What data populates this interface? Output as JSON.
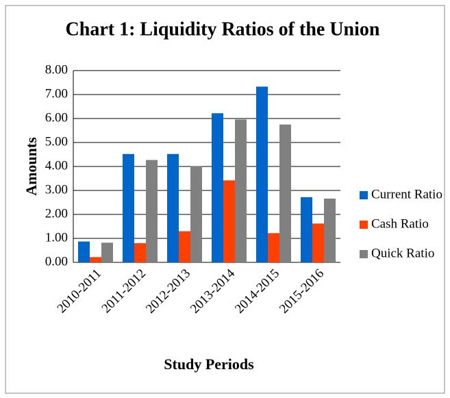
{
  "chart_data": {
    "type": "bar",
    "title": "Chart  1: Liquidity Ratios of the Union",
    "x_label": "Study Periods",
    "y_label": "Amounts",
    "categories": [
      "2010-2011",
      "2011-2012",
      "2012-2013",
      "2013-2014",
      "2014-2015",
      "2015-2016"
    ],
    "series": [
      {
        "name": "Current Ratio",
        "color": "#0066cc",
        "values": [
          0.87,
          4.52,
          4.52,
          6.22,
          7.33,
          2.72
        ]
      },
      {
        "name": "Cash Ratio",
        "color": "#ff4000",
        "values": [
          0.22,
          0.8,
          1.3,
          3.42,
          1.22,
          1.62
        ]
      },
      {
        "name": "Quick Ratio",
        "color": "#808080",
        "values": [
          0.82,
          4.27,
          4.02,
          5.96,
          5.75,
          2.66
        ]
      }
    ],
    "ylim": [
      0,
      8
    ],
    "yticks": [
      {
        "value": 0,
        "label": "0.00"
      },
      {
        "value": 1,
        "label": "1.00"
      },
      {
        "value": 2,
        "label": "2.00"
      },
      {
        "value": 3,
        "label": "3.00"
      },
      {
        "value": 4,
        "label": "4.00"
      },
      {
        "value": 5,
        "label": "5.00"
      },
      {
        "value": 6,
        "label": "6.00"
      },
      {
        "value": 7,
        "label": "7.00"
      },
      {
        "value": 8,
        "label": "8.00"
      }
    ],
    "grid": true,
    "legend": "right"
  }
}
